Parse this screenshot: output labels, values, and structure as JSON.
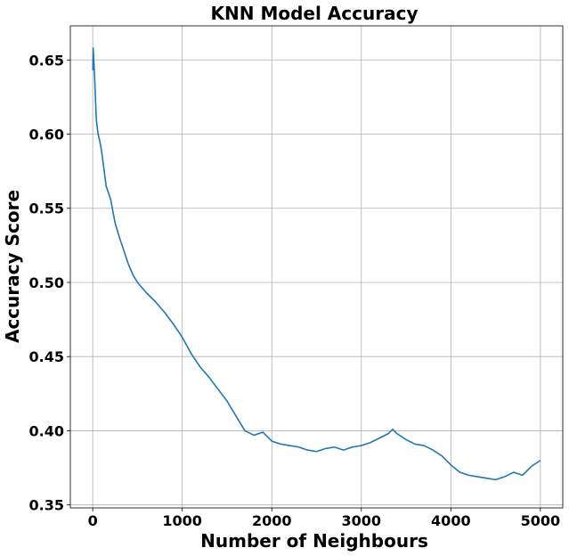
{
  "chart_data": {
    "type": "line",
    "title": "KNN Model Accuracy",
    "xlabel": "Number of Neighbours",
    "ylabel": "Accuracy Score",
    "xlim": [
      -250,
      5250
    ],
    "ylim": [
      0.348,
      0.673
    ],
    "xticks": [
      0,
      1000,
      2000,
      3000,
      4000,
      5000
    ],
    "xtick_labels": [
      "0",
      "1000",
      "2000",
      "3000",
      "4000",
      "5000"
    ],
    "yticks": [
      0.35,
      0.4,
      0.45,
      0.5,
      0.55,
      0.6,
      0.65
    ],
    "ytick_labels": [
      "0.35",
      "0.40",
      "0.45",
      "0.50",
      "0.55",
      "0.60",
      "0.65"
    ],
    "grid": true,
    "series": [
      {
        "color": "#1f77b4",
        "x": [
          1,
          5,
          10,
          20,
          40,
          60,
          80,
          100,
          150,
          200,
          250,
          300,
          350,
          400,
          450,
          500,
          600,
          700,
          800,
          900,
          1000,
          1100,
          1200,
          1300,
          1400,
          1500,
          1600,
          1700,
          1800,
          1900,
          2000,
          2100,
          2200,
          2300,
          2400,
          2500,
          2600,
          2700,
          2800,
          2900,
          3000,
          3100,
          3200,
          3300,
          3350,
          3400,
          3500,
          3600,
          3700,
          3800,
          3900,
          4000,
          4100,
          4200,
          4300,
          4400,
          4500,
          4600,
          4700,
          4800,
          4900,
          5000
        ],
        "y": [
          0.643,
          0.658,
          0.652,
          0.64,
          0.61,
          0.6,
          0.595,
          0.588,
          0.565,
          0.556,
          0.54,
          0.53,
          0.521,
          0.512,
          0.505,
          0.5,
          0.493,
          0.487,
          0.48,
          0.472,
          0.463,
          0.452,
          0.443,
          0.436,
          0.428,
          0.42,
          0.41,
          0.4,
          0.397,
          0.399,
          0.393,
          0.391,
          0.39,
          0.389,
          0.387,
          0.386,
          0.388,
          0.389,
          0.387,
          0.389,
          0.39,
          0.392,
          0.395,
          0.398,
          0.401,
          0.398,
          0.394,
          0.391,
          0.39,
          0.387,
          0.383,
          0.377,
          0.372,
          0.37,
          0.369,
          0.368,
          0.367,
          0.369,
          0.372,
          0.37,
          0.376,
          0.38
        ]
      }
    ]
  }
}
